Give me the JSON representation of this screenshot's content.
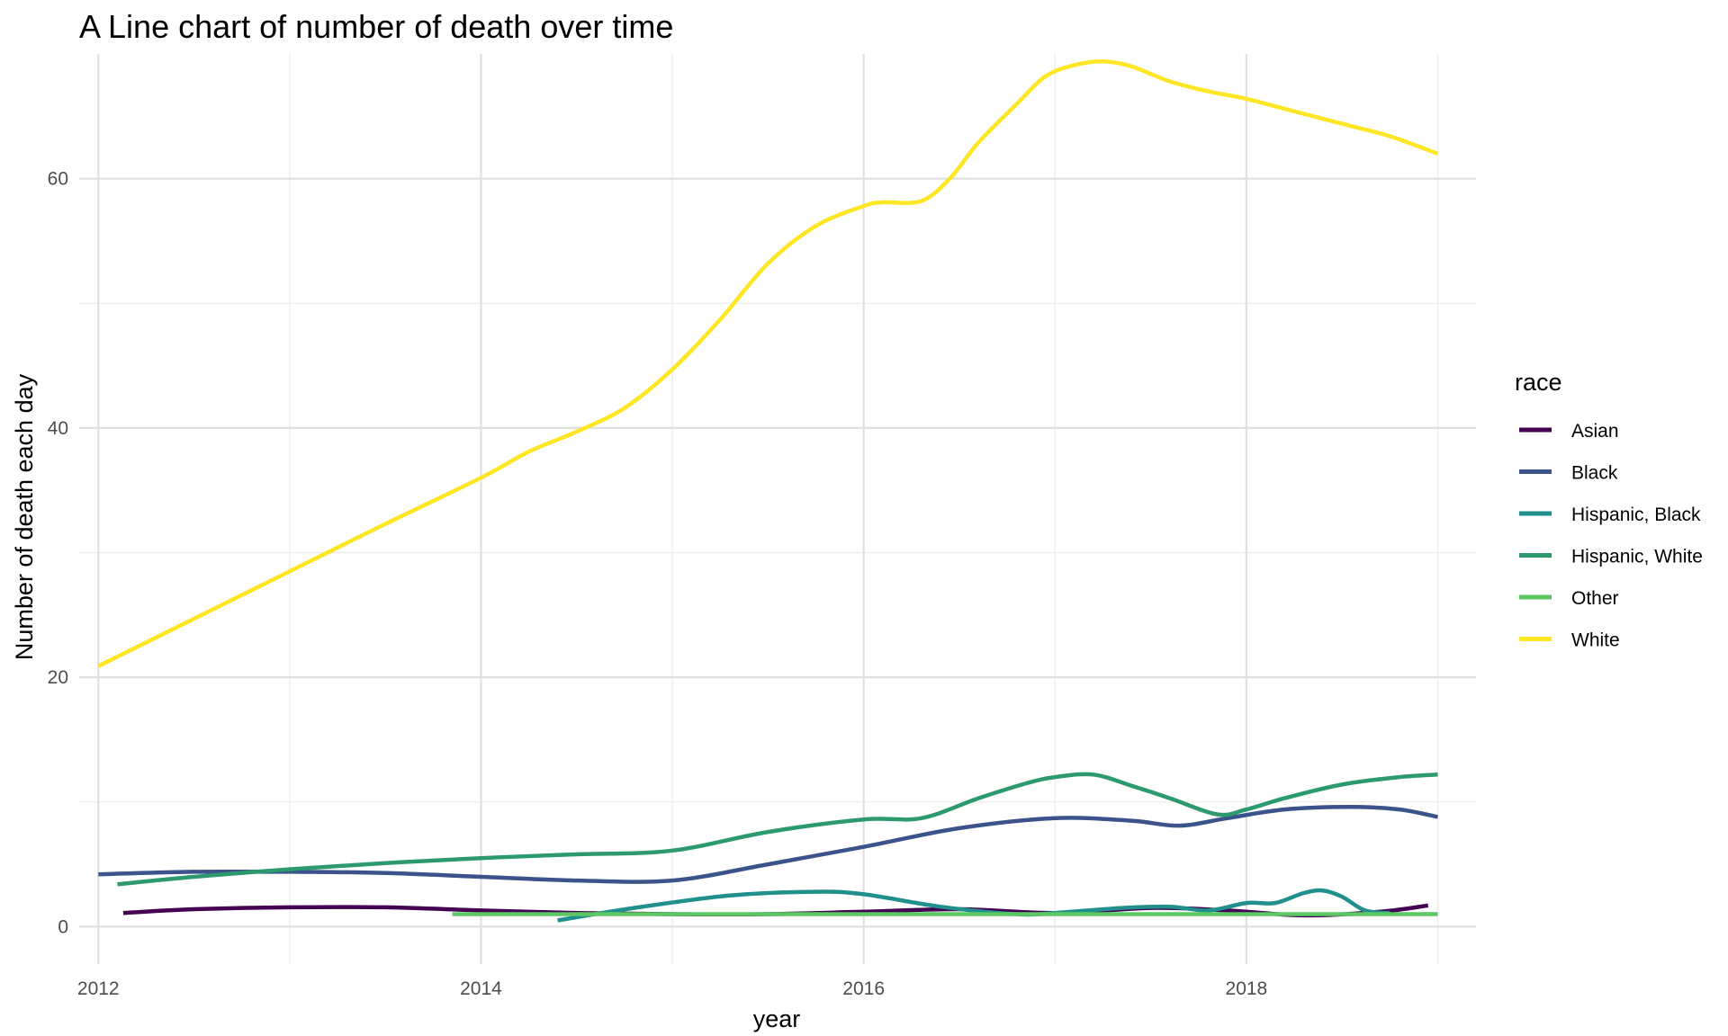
{
  "chart_data": {
    "type": "line",
    "title": "A Line chart of number of death over time",
    "xlabel": "year",
    "ylabel": "Number of death each day",
    "xlim": [
      2011.9,
      2019.2
    ],
    "ylim": [
      -3,
      70
    ],
    "x_ticks": [
      2012,
      2014,
      2016,
      2018
    ],
    "x_tick_labels": [
      "2012",
      "2014",
      "2016",
      "2018"
    ],
    "x_minor_ticks": [
      2013,
      2015,
      2017,
      2019
    ],
    "y_ticks": [
      0,
      20,
      40,
      60
    ],
    "y_tick_labels": [
      "0",
      "20",
      "40",
      "60"
    ],
    "y_minor_ticks": [
      10,
      30,
      50
    ],
    "grid": true,
    "legend": {
      "title": "race",
      "position": "right"
    },
    "series": [
      {
        "name": "Asian",
        "color": "#440154",
        "x": [
          2012.13,
          2012.5,
          2013.0,
          2013.5,
          2014.0,
          2014.5,
          2015.0,
          2015.5,
          2016.0,
          2016.5,
          2017.0,
          2017.5,
          2017.9,
          2018.3,
          2018.7,
          2018.95
        ],
        "y": [
          1.1,
          1.4,
          1.55,
          1.55,
          1.3,
          1.1,
          1.0,
          1.0,
          1.2,
          1.4,
          1.1,
          1.5,
          1.3,
          0.9,
          1.2,
          1.7
        ]
      },
      {
        "name": "Black",
        "color": "#3b528b",
        "x": [
          2012.0,
          2012.5,
          2013.0,
          2013.5,
          2014.0,
          2014.5,
          2015.0,
          2015.5,
          2016.0,
          2016.5,
          2017.0,
          2017.4,
          2017.65,
          2017.9,
          2018.2,
          2018.55,
          2018.8,
          2019.0
        ],
        "y": [
          4.2,
          4.4,
          4.4,
          4.3,
          4.0,
          3.7,
          3.7,
          5.0,
          6.4,
          7.9,
          8.7,
          8.5,
          8.1,
          8.7,
          9.4,
          9.6,
          9.4,
          8.8
        ]
      },
      {
        "name": "Hispanic, Black",
        "color": "#21908c",
        "x": [
          2014.4,
          2014.8,
          2015.3,
          2015.75,
          2016.0,
          2016.4,
          2016.8,
          2017.0,
          2017.35,
          2017.6,
          2017.8,
          2018.0,
          2018.15,
          2018.3,
          2018.4,
          2018.5,
          2018.62,
          2018.75
        ],
        "y": [
          0.5,
          1.5,
          2.5,
          2.8,
          2.6,
          1.6,
          1.0,
          1.1,
          1.5,
          1.6,
          1.3,
          1.9,
          1.9,
          2.7,
          2.9,
          2.4,
          1.3,
          1.1
        ]
      },
      {
        "name": "Hispanic, White",
        "color": "#2c9a6e",
        "x": [
          2012.1,
          2012.5,
          2013.0,
          2013.5,
          2014.0,
          2014.5,
          2015.0,
          2015.5,
          2016.0,
          2016.3,
          2016.6,
          2016.85,
          2017.0,
          2017.2,
          2017.4,
          2017.6,
          2017.85,
          2018.0,
          2018.2,
          2018.5,
          2018.8,
          2019.0
        ],
        "y": [
          3.4,
          4.0,
          4.6,
          5.1,
          5.5,
          5.8,
          6.1,
          7.6,
          8.6,
          8.7,
          10.3,
          11.5,
          12.0,
          12.2,
          11.3,
          10.3,
          9.0,
          9.4,
          10.3,
          11.4,
          12.0,
          12.2
        ]
      },
      {
        "name": "Other",
        "color": "#5dc863",
        "x": [
          2013.85,
          2014.5,
          2015.0,
          2015.5,
          2016.0,
          2016.5,
          2017.0,
          2017.5,
          2018.0,
          2018.5,
          2019.0
        ],
        "y": [
          1.0,
          1.0,
          1.0,
          1.0,
          1.0,
          1.0,
          1.0,
          1.0,
          1.0,
          1.0,
          1.0
        ]
      },
      {
        "name": "White",
        "color": "#fde725",
        "x": [
          2012.0,
          2012.5,
          2013.0,
          2013.5,
          2014.0,
          2014.25,
          2014.5,
          2014.75,
          2015.0,
          2015.25,
          2015.5,
          2015.75,
          2016.0,
          2016.1,
          2016.3,
          2016.45,
          2016.6,
          2016.8,
          2016.95,
          2017.1,
          2017.25,
          2017.4,
          2017.6,
          2017.8,
          2018.0,
          2018.25,
          2018.5,
          2018.75,
          2019.0
        ],
        "y": [
          20.9,
          24.7,
          28.5,
          32.3,
          36.0,
          38.1,
          39.7,
          41.6,
          44.7,
          48.7,
          53.2,
          56.2,
          57.8,
          58.1,
          58.2,
          60.0,
          62.9,
          66.0,
          68.2,
          69.1,
          69.4,
          69.0,
          67.8,
          67.0,
          66.4,
          65.4,
          64.4,
          63.4,
          62.0
        ]
      }
    ]
  }
}
